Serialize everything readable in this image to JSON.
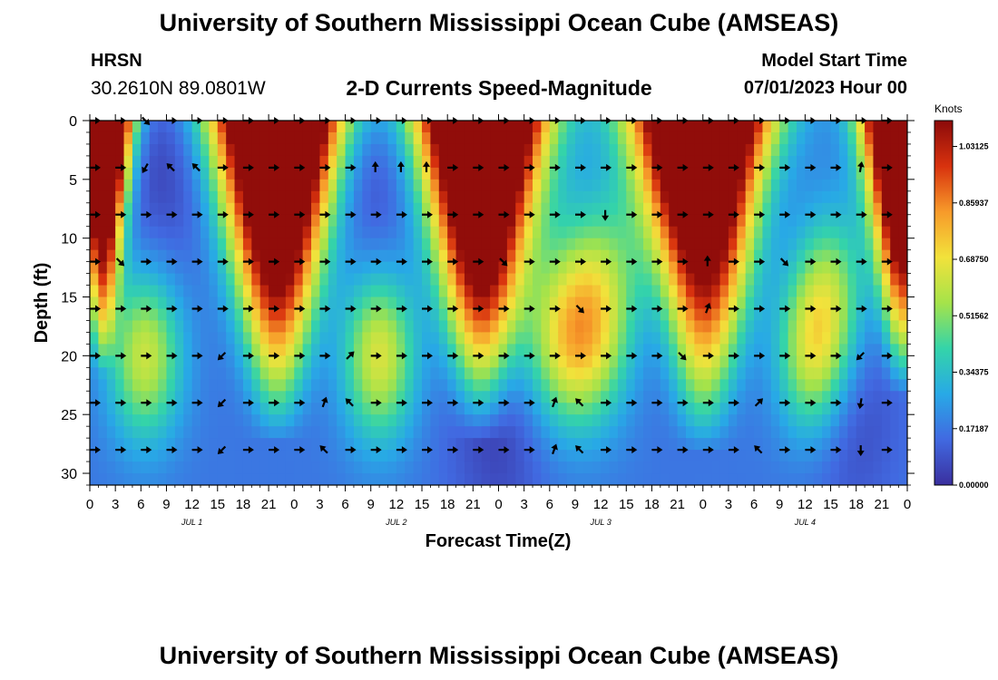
{
  "header": {
    "title": "University of Southern Mississippi Ocean Cube (AMSEAS)",
    "station": "HRSN",
    "coords": "30.2610N  89.0801W",
    "subtitle": "2-D Currents Speed-Magnitude",
    "model_start_label": "Model Start Time",
    "model_start_value": "07/01/2023 Hour 00"
  },
  "footer": {
    "title": "University of Southern Mississippi Ocean Cube (AMSEAS)"
  },
  "colors": {
    "background": "#ffffff",
    "arrow": "#000000",
    "scale": [
      "#3a2f9e",
      "#4169e1",
      "#28a9e6",
      "#34d4a9",
      "#a5e34a",
      "#f2e23b",
      "#f79a2a",
      "#d8320e",
      "#8b0a0a"
    ]
  },
  "chart_data": {
    "type": "heatmap",
    "title": "2-D Currents Speed-Magnitude",
    "xlabel": "Forecast Time(Z)",
    "ylabel": "Depth (ft)",
    "x_hours_range": [
      0,
      96
    ],
    "ylim": [
      0,
      31
    ],
    "y_inverted": true,
    "x_ticks": [
      0,
      3,
      6,
      9,
      12,
      15,
      18,
      21,
      24,
      27,
      30,
      33,
      36,
      39,
      42,
      45,
      48,
      51,
      54,
      57,
      60,
      63,
      66,
      69,
      72,
      75,
      78,
      81,
      84,
      87,
      90,
      93,
      96
    ],
    "x_tick_labels": [
      "0",
      "3",
      "6",
      "9",
      "12",
      "15",
      "18",
      "21",
      "0",
      "3",
      "6",
      "9",
      "12",
      "15",
      "18",
      "21",
      "0",
      "3",
      "6",
      "9",
      "12",
      "15",
      "18",
      "21",
      "0",
      "3",
      "6",
      "9",
      "12",
      "15",
      "18",
      "21",
      "0"
    ],
    "day_labels": [
      {
        "hour": 12,
        "label": "JUL 1"
      },
      {
        "hour": 36,
        "label": "JUL 2"
      },
      {
        "hour": 60,
        "label": "JUL 3"
      },
      {
        "hour": 84,
        "label": "JUL 4"
      }
    ],
    "y_ticks": [
      0,
      5,
      10,
      15,
      20,
      25,
      30
    ],
    "colorbar": {
      "units": "Knots",
      "min": 0.0,
      "max": 1.11,
      "ticks": [
        1.03125,
        0.85937,
        0.6875,
        0.51562,
        0.34375,
        0.17187,
        0.0
      ],
      "tick_labels": [
        "1.03125",
        "0.85937",
        "0.68750",
        "0.51562",
        "0.34375",
        "0.17187",
        "0.00000"
      ]
    },
    "depths_ft": [
      0,
      4,
      8,
      12,
      16,
      20,
      24,
      28
    ],
    "arrow_hours": [
      0,
      3,
      6,
      9,
      12,
      15,
      18,
      21,
      24,
      27,
      30,
      33,
      36,
      39,
      42,
      45,
      48,
      51,
      54,
      57,
      60,
      63,
      66,
      69,
      72,
      75,
      78,
      81,
      84,
      87,
      90,
      93
    ],
    "arrow_direction_deg_rows": [
      [
        0,
        0,
        315,
        0,
        0,
        0,
        0,
        0,
        0,
        0,
        0,
        0,
        0,
        0,
        0,
        0,
        0,
        0,
        0,
        0,
        0,
        0,
        0,
        0,
        0,
        0,
        0,
        0,
        0,
        0,
        0,
        0
      ],
      [
        0,
        0,
        240,
        135,
        135,
        0,
        0,
        0,
        0,
        0,
        0,
        90,
        90,
        90,
        0,
        0,
        0,
        0,
        0,
        0,
        0,
        0,
        0,
        0,
        0,
        0,
        0,
        0,
        0,
        0,
        80,
        0
      ],
      [
        0,
        0,
        0,
        0,
        0,
        0,
        0,
        0,
        0,
        0,
        0,
        0,
        0,
        0,
        0,
        0,
        0,
        0,
        0,
        0,
        270,
        0,
        0,
        0,
        0,
        0,
        0,
        0,
        0,
        0,
        0,
        0
      ],
      [
        0,
        315,
        0,
        0,
        0,
        0,
        0,
        0,
        0,
        0,
        0,
        0,
        0,
        0,
        0,
        0,
        315,
        0,
        0,
        0,
        0,
        0,
        0,
        0,
        90,
        0,
        0,
        315,
        0,
        0,
        0,
        0
      ],
      [
        0,
        0,
        0,
        0,
        0,
        0,
        0,
        0,
        0,
        0,
        0,
        0,
        0,
        0,
        0,
        0,
        0,
        0,
        0,
        315,
        0,
        0,
        0,
        0,
        70,
        0,
        0,
        0,
        0,
        0,
        0,
        0
      ],
      [
        0,
        0,
        0,
        0,
        0,
        225,
        0,
        0,
        0,
        0,
        45,
        0,
        0,
        0,
        0,
        0,
        0,
        0,
        0,
        0,
        0,
        0,
        0,
        315,
        0,
        0,
        0,
        0,
        0,
        0,
        225,
        0
      ],
      [
        0,
        0,
        0,
        0,
        0,
        225,
        0,
        0,
        0,
        70,
        135,
        0,
        0,
        0,
        0,
        0,
        0,
        0,
        70,
        135,
        0,
        0,
        0,
        0,
        0,
        0,
        45,
        0,
        0,
        0,
        260,
        0
      ],
      [
        0,
        0,
        0,
        0,
        0,
        225,
        0,
        0,
        0,
        135,
        0,
        0,
        0,
        0,
        0,
        0,
        0,
        0,
        70,
        135,
        0,
        0,
        0,
        0,
        0,
        0,
        135,
        0,
        0,
        0,
        270,
        0
      ]
    ]
  }
}
